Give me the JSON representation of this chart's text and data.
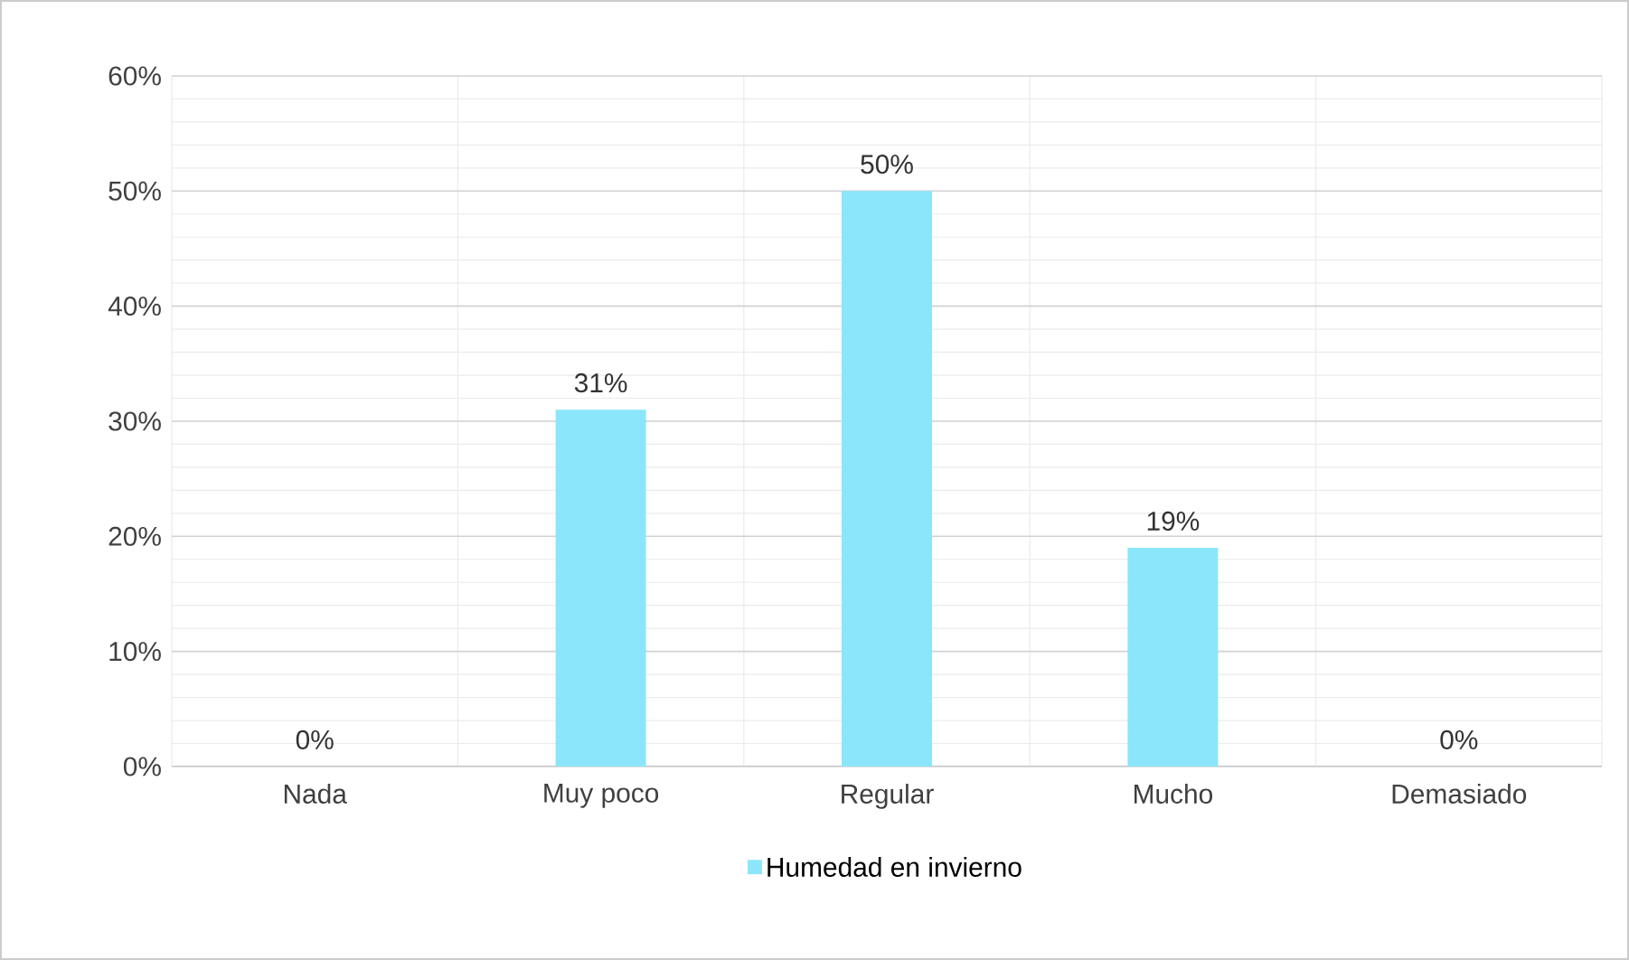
{
  "chart_data": {
    "type": "bar",
    "categories": [
      "Nada",
      "Muy poco",
      "Regular",
      "Mucho",
      "Demasiado"
    ],
    "series": [
      {
        "name": "Humedad en invierno",
        "color": "#8be6fc",
        "values": [
          0,
          31,
          50,
          19,
          0
        ],
        "value_labels": [
          "0%",
          "31%",
          "50%",
          "19%",
          "0%"
        ]
      }
    ],
    "ylim": [
      0,
      60
    ],
    "yticks": [
      {
        "value": 0,
        "label": "0%"
      },
      {
        "value": 10,
        "label": "10%"
      },
      {
        "value": 20,
        "label": "20%"
      },
      {
        "value": 30,
        "label": "30%"
      },
      {
        "value": 40,
        "label": "40%"
      },
      {
        "value": 50,
        "label": "50%"
      },
      {
        "value": 60,
        "label": "60%"
      }
    ],
    "grid": true,
    "legend": "bottom"
  }
}
